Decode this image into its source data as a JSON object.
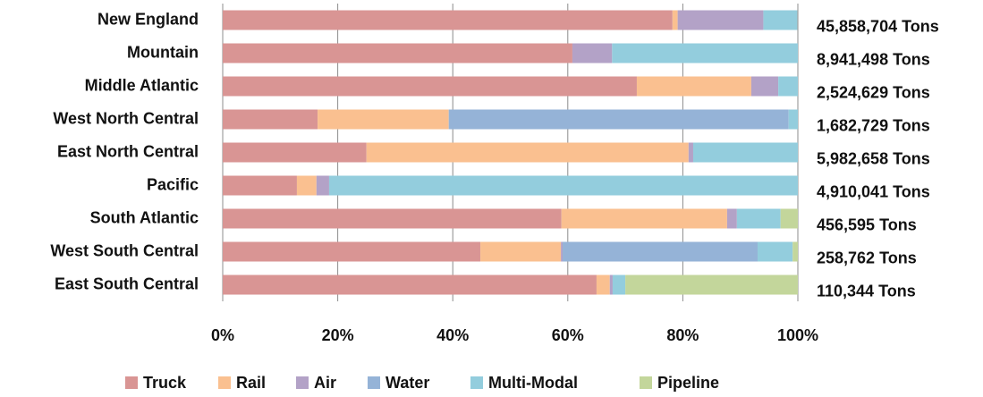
{
  "chart_data": {
    "type": "stacked_hbar_percent",
    "categories": [
      "New England",
      "Mountain",
      "Middle Atlantic",
      "West North Central",
      "East North Central",
      "Pacific",
      "South Atlantic",
      "West South Central",
      "East South Central"
    ],
    "series": [
      {
        "name": "Truck",
        "color": "#d99594",
        "values": [
          78.2,
          60.8,
          72.0,
          16.5,
          25.0,
          12.9,
          58.9,
          44.8,
          65.0
        ]
      },
      {
        "name": "Rail",
        "color": "#fac090",
        "values": [
          0.9,
          0,
          19.9,
          22.8,
          56.0,
          3.4,
          28.8,
          14.0,
          2.3
        ]
      },
      {
        "name": "Air",
        "color": "#b3a2c7",
        "values": [
          14.9,
          6.9,
          4.7,
          0,
          0.8,
          2.2,
          1.7,
          0.3,
          0.5
        ]
      },
      {
        "name": "Water",
        "color": "#95b3d7",
        "values": [
          0,
          0,
          0,
          59.1,
          0,
          0,
          0,
          33.9,
          0
        ]
      },
      {
        "name": "Multi-Modal",
        "color": "#93cddd",
        "values": [
          5.9,
          32.3,
          3.4,
          1.6,
          18.2,
          81.5,
          7.6,
          6.1,
          2.2
        ]
      },
      {
        "name": "Pipeline",
        "color": "#c3d69b",
        "values": [
          0,
          0,
          0,
          0,
          0,
          0,
          3.0,
          0.9,
          30.0
        ]
      }
    ],
    "annotations": [
      "45,858,704 Tons",
      "8,941,498 Tons",
      "2,524,629 Tons",
      "1,682,729 Tons",
      "5,982,658 Tons",
      "4,910,041 Tons",
      "456,595 Tons",
      "258,762 Tons",
      "110,344 Tons"
    ],
    "xlim": [
      0,
      100
    ],
    "xticks": [
      {
        "value": 0,
        "label": "0%"
      },
      {
        "value": 20,
        "label": "20%"
      },
      {
        "value": 40,
        "label": "40%"
      },
      {
        "value": 60,
        "label": "60%"
      },
      {
        "value": 80,
        "label": "80%"
      },
      {
        "value": 100,
        "label": "100%"
      }
    ],
    "grid": true,
    "legend": "bottom"
  }
}
